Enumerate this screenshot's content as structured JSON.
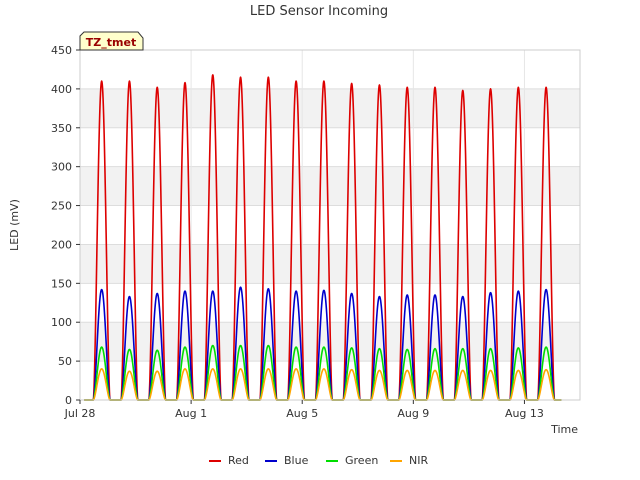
{
  "chart_data": {
    "type": "line",
    "title": "LED Sensor Incoming",
    "xlabel": "Time",
    "ylabel": "LED (mV)",
    "site_label": "TZ_tmet",
    "ylim": [
      0,
      450
    ],
    "yticks": [
      0,
      50,
      100,
      150,
      200,
      250,
      300,
      350,
      400,
      450
    ],
    "xlim": [
      0,
      18
    ],
    "xticks": [
      {
        "label": "Jul 28",
        "day": 0
      },
      {
        "label": "Aug 1",
        "day": 4
      },
      {
        "label": "Aug 5",
        "day": 8
      },
      {
        "label": "Aug 9",
        "day": 12
      },
      {
        "label": "Aug 13",
        "day": 16
      }
    ],
    "peak_days": [
      0.78,
      1.78,
      2.78,
      3.78,
      4.78,
      5.78,
      6.78,
      7.78,
      8.78,
      9.78,
      10.78,
      11.78,
      12.78,
      13.78,
      14.78,
      15.78,
      16.78
    ],
    "series": [
      {
        "name": "Red",
        "color": "#dd0000",
        "peaks": [
          410,
          410,
          402,
          408,
          418,
          415,
          415,
          410,
          410,
          407,
          405,
          402,
          402,
          398,
          400,
          402,
          402
        ]
      },
      {
        "name": "Blue",
        "color": "#0000cc",
        "peaks": [
          142,
          133,
          137,
          140,
          140,
          145,
          143,
          140,
          141,
          137,
          133,
          135,
          135,
          133,
          138,
          140,
          142
        ]
      },
      {
        "name": "Green",
        "color": "#00dd00",
        "peaks": [
          68,
          65,
          64,
          68,
          70,
          70,
          70,
          68,
          68,
          67,
          66,
          65,
          66,
          66,
          66,
          67,
          68
        ]
      },
      {
        "name": "NIR",
        "color": "#ffa500",
        "peaks": [
          40,
          37,
          37,
          40,
          40,
          40,
          40,
          40,
          40,
          39,
          38,
          38,
          38,
          38,
          38,
          38,
          39
        ]
      }
    ]
  }
}
